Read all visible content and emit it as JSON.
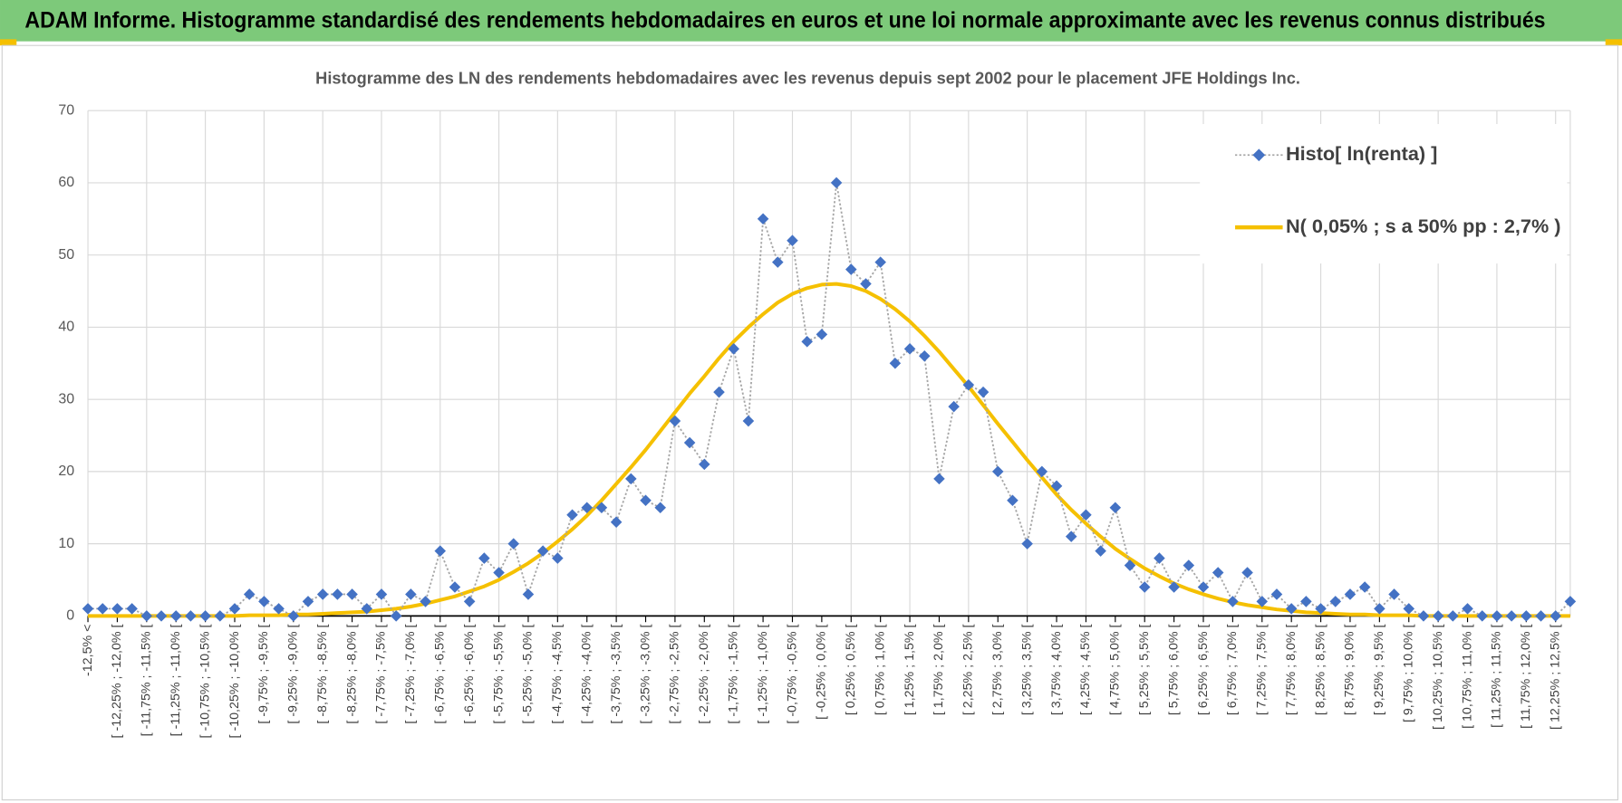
{
  "header": {
    "title": "ADAM Informe. Histogramme standardisé des rendements hebdomadaires en euros et une loi normale approximante avec les revenus connus distribués"
  },
  "chart_data": {
    "type": "line",
    "title": "Histogramme des LN des rendements hebdomadaires avec les revenus depuis sept 2002 pour le placement JFE Holdings Inc.",
    "categories": [
      "-12,5% <",
      null,
      "[ -12,25% ; -12,0% [",
      null,
      "[ -11,75% ; -11,5% [",
      null,
      "[ -11,25% ; -11,0% [",
      null,
      "[ -10,75% ; -10,5% [",
      null,
      "[ -10,25% ; -10,0% [",
      null,
      "[ -9,75% ; -9,5% [",
      null,
      "[ -9,25% ; -9,0% [",
      null,
      "[ -8,75% ; -8,5% [",
      null,
      "[ -8,25% ; -8,0% [",
      null,
      "[ -7,75% ; -7,5% [",
      null,
      "[ -7,25% ; -7,0% [",
      null,
      "[ -6,75% ; -6,5% [",
      null,
      "[ -6,25% ; -6,0% [",
      null,
      "[ -5,75% ; -5,5% [",
      null,
      "[ -5,25% ; -5,0% [",
      null,
      "[ -4,75% ; -4,5% [",
      null,
      "[ -4,25% ; -4,0% [",
      null,
      "[ -3,75% ; -3,5% [",
      null,
      "[ -3,25% ; -3,0% [",
      null,
      "[ -2,75% ; -2,5% [",
      null,
      "[ -2,25% ; -2,0% [",
      null,
      "[ -1,75% ; -1,5% [",
      null,
      "[ -1,25% ; -1,0% [",
      null,
      "[ -0,75% ; -0,5% [",
      null,
      "[ -0,25% ; 0,0% [",
      null,
      "[ 0,25% ; 0,5% [",
      null,
      "[ 0,75% ; 1,0% [",
      null,
      "[ 1,25% ; 1,5% [",
      null,
      "[ 1,75% ; 2,0% [",
      null,
      "[ 2,25% ; 2,5% [",
      null,
      "[ 2,75% ; 3,0% [",
      null,
      "[ 3,25% ; 3,5% [",
      null,
      "[ 3,75% ; 4,0% [",
      null,
      "[ 4,25% ; 4,5% [",
      null,
      "[ 4,75% ; 5,0% [",
      null,
      "[ 5,25% ; 5,5% [",
      null,
      "[ 5,75% ; 6,0% [",
      null,
      "[ 6,25% ; 6,5% [",
      null,
      "[ 6,75% ; 7,0% [",
      null,
      "[ 7,25% ; 7,5% [",
      null,
      "[ 7,75% ; 8,0% [",
      null,
      "[ 8,25% ; 8,5% [",
      null,
      "[ 8,75% ; 9,0% [",
      null,
      "[ 9,25% ; 9,5% [",
      null,
      "[ 9,75% ; 10,0% [",
      null,
      "[ 10,25% ; 10,5% [",
      null,
      "[ 10,75% ; 11,0% [",
      null,
      "[ 11,25% ; 11,5% [",
      null,
      "[ 11,75% ; 12,0% [",
      null,
      "[ 12,25% ; 12,5% [",
      null
    ],
    "series": [
      {
        "name": "Histo[ ln(renta) ]",
        "color": "#4472c4",
        "values": [
          1,
          1,
          1,
          1,
          0,
          0,
          0,
          0,
          0,
          0,
          1,
          3,
          2,
          1,
          0,
          2,
          3,
          3,
          3,
          1,
          3,
          0,
          3,
          2,
          9,
          4,
          2,
          8,
          6,
          10,
          3,
          9,
          8,
          14,
          15,
          15,
          13,
          19,
          16,
          15,
          27,
          24,
          21,
          31,
          37,
          27,
          55,
          49,
          52,
          38,
          39,
          60,
          48,
          46,
          49,
          35,
          37,
          36,
          19,
          29,
          32,
          31,
          20,
          16,
          10,
          20,
          18,
          11,
          14,
          9,
          15,
          7,
          4,
          8,
          4,
          7,
          4,
          6,
          2,
          6,
          2,
          3,
          1,
          2,
          1,
          2,
          3,
          4,
          1,
          3,
          1,
          0,
          0,
          0,
          1,
          0,
          0,
          0,
          0,
          0,
          0,
          2
        ]
      },
      {
        "name": "N( 0,05% ; s a 50% pp : 2,7% )",
        "color": "#f5c000",
        "values": [
          0,
          0,
          0,
          0,
          0,
          0,
          0,
          0,
          0,
          0,
          0,
          0.1,
          0.1,
          0.1,
          0.2,
          0.2,
          0.3,
          0.4,
          0.5,
          0.6,
          0.8,
          1.0,
          1.3,
          1.7,
          2.2,
          2.7,
          3.4,
          4.1,
          5.0,
          6.1,
          7.3,
          8.7,
          10.3,
          12.0,
          13.9,
          16.0,
          18.3,
          20.6,
          23.0,
          25.6,
          28.2,
          30.8,
          33.2,
          35.7,
          38.0,
          40.0,
          41.8,
          43.4,
          44.6,
          45.4,
          45.9,
          46.0,
          45.7,
          45.0,
          43.9,
          42.5,
          40.8,
          38.8,
          36.6,
          34.2,
          31.8,
          29.2,
          26.6,
          24.1,
          21.6,
          19.2,
          16.8,
          14.7,
          12.8,
          11.0,
          9.3,
          7.9,
          6.6,
          5.5,
          4.5,
          3.7,
          3.0,
          2.4,
          1.9,
          1.5,
          1.2,
          0.9,
          0.7,
          0.5,
          0.4,
          0.3,
          0.2,
          0.2,
          0.1,
          0.1,
          0.1,
          0,
          0,
          0,
          0,
          0,
          0,
          0,
          0,
          0,
          0,
          0
        ]
      }
    ],
    "ylim": [
      0,
      70
    ],
    "yticks": [
      0,
      10,
      20,
      30,
      40,
      50,
      60,
      70
    ],
    "grid": true,
    "legend": "upper right"
  }
}
